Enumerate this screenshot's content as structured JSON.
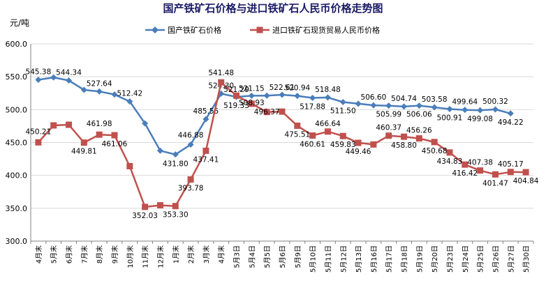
{
  "chart_data": {
    "type": "line",
    "title": "国产铁矿石价格与进口铁矿石人民币价格走势图",
    "ylabel": "元/吨",
    "xlabel": "",
    "ylim": [
      300,
      600
    ],
    "yticks": [
      "300.0",
      "350.0",
      "400.0",
      "450.0",
      "500.0",
      "550.0",
      "600.0"
    ],
    "grid": true,
    "legend": "top",
    "categories": [
      "4月末",
      "5月末",
      "6月末",
      "7月末",
      "8月末",
      "9月末",
      "10月末",
      "11月末",
      "12月末",
      "1月末",
      "2月末",
      "3月末",
      "4月末",
      "5月3日",
      "5月4日",
      "5月5日",
      "5月6日",
      "5月9日",
      "5月10日",
      "5月11日",
      "5月12日",
      "5月13日",
      "5月16日",
      "5月17日",
      "5月18日",
      "5月19日",
      "5月20日",
      "5月23日",
      "5月24日",
      "5月25日",
      "5月26日",
      "5月27日",
      "5月30日"
    ],
    "series": [
      {
        "name": "国产铁矿石价格",
        "color": "#4a7ebb",
        "marker": "diamond",
        "values": [
          545.38,
          549.0,
          544.34,
          530.0,
          527.64,
          523.0,
          512.42,
          479.0,
          437.5,
          431.8,
          446.88,
          485.55,
          524.3,
          519.33,
          521.15,
          521.3,
          522.61,
          520.94,
          517.88,
          518.48,
          511.5,
          509.0,
          506.6,
          505.99,
          504.74,
          506.06,
          503.58,
          500.91,
          499.64,
          499.08,
          500.32,
          494.22,
          null
        ],
        "labels": [
          "545.38",
          "",
          "544.34",
          "",
          "527.64",
          "",
          "512.42",
          "",
          "",
          "431.80",
          "446.88",
          "485.55",
          "524.30",
          "519.33",
          "521.15",
          "",
          "522.61",
          "520.94",
          "517.88",
          "518.48",
          "511.50",
          "",
          "506.60",
          "505.99",
          "504.74",
          "506.06",
          "503.58",
          "500.91",
          "499.64",
          "499.08",
          "500.32",
          "494.22",
          ""
        ]
      },
      {
        "name": "进口铁矿石现货贸易人民币价格",
        "color": "#c0504d",
        "marker": "square",
        "values": [
          450.21,
          476.0,
          477.0,
          449.81,
          461.98,
          461.06,
          414.0,
          352.03,
          354.5,
          353.3,
          393.78,
          437.41,
          541.48,
          521.29,
          508.93,
          496.37,
          497.0,
          475.51,
          460.61,
          466.64,
          459.83,
          449.46,
          447.0,
          460.37,
          458.8,
          456.26,
          450.68,
          434.83,
          416.42,
          407.38,
          401.47,
          405.17,
          404.84
        ],
        "labels": [
          "450.21",
          "",
          "",
          "449.81",
          "461.98",
          "461.06",
          "",
          "352.03",
          "",
          "353.30",
          "393.78",
          "437.41",
          "541.48",
          "521.29",
          "508.93",
          "496.37",
          "",
          "475.51",
          "460.61",
          "466.64",
          "459.83",
          "449.46",
          "",
          "460.37",
          "458.80",
          "456.26",
          "450.68",
          "434.83",
          "416.42",
          "407.38",
          "401.47",
          "405.17",
          "404.84"
        ]
      }
    ]
  }
}
